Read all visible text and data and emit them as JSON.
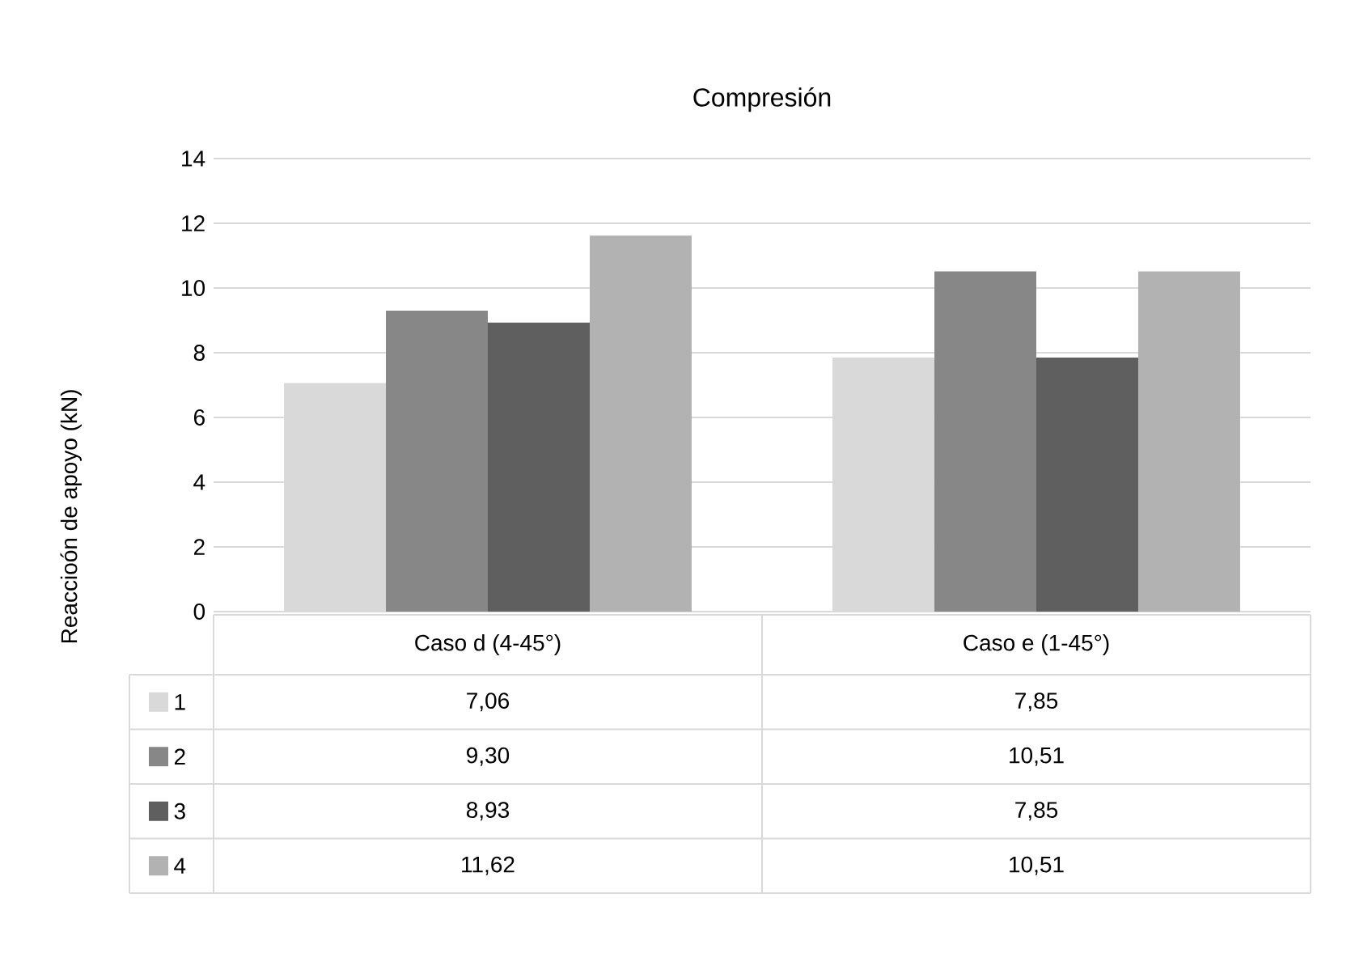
{
  "chart_data": {
    "type": "bar",
    "title": "Compresión",
    "ylabel": "Reaccioón de apoyo (kN)",
    "categories": [
      "Caso d (4-45°)",
      "Caso e (1-45°)"
    ],
    "series": [
      {
        "name": "1",
        "color": "#d9d9d9",
        "values": [
          7.06,
          7.85
        ],
        "value_labels": [
          "7,06",
          "7,85"
        ]
      },
      {
        "name": "2",
        "color": "#878787",
        "values": [
          9.3,
          10.51
        ],
        "value_labels": [
          "9,30",
          "10,51"
        ]
      },
      {
        "name": "3",
        "color": "#5f5f5f",
        "values": [
          8.93,
          7.85
        ],
        "value_labels": [
          "8,93",
          "7,85"
        ]
      },
      {
        "name": "4",
        "color": "#b2b2b2",
        "values": [
          11.62,
          10.51
        ],
        "value_labels": [
          "11,62",
          "10,51"
        ]
      }
    ],
    "ylim": [
      0,
      14
    ],
    "yticks": [
      0,
      2,
      4,
      6,
      8,
      10,
      12,
      14
    ],
    "grid": "y",
    "legend": "bottom"
  }
}
